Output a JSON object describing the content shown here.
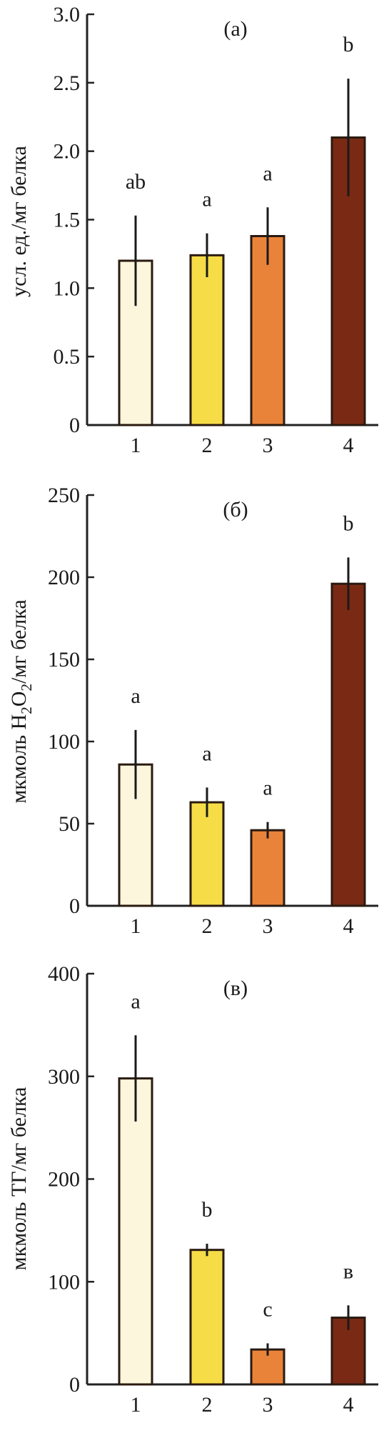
{
  "figure": {
    "colors": {
      "bar_1": "#fbf6dc",
      "bar_2": "#f6dd48",
      "bar_3": "#e9833a",
      "bar_4": "#7a2a14",
      "axis": "#222222"
    }
  },
  "chart_data": [
    {
      "type": "bar",
      "panel_label": "(а)",
      "ylabel": "усл. ед./мг белка",
      "ylim": [
        0,
        3.0
      ],
      "yticks": [
        0,
        0.5,
        1.0,
        1.5,
        2.0,
        2.5,
        3.0
      ],
      "ytick_labels": [
        "0",
        "0.5",
        "1.0",
        "1.5",
        "2.0",
        "2.5",
        "3.0"
      ],
      "categories": [
        "1",
        "2",
        "3",
        "4"
      ],
      "values": [
        1.2,
        1.24,
        1.38,
        2.1
      ],
      "errors": [
        0.33,
        0.16,
        0.21,
        0.43
      ],
      "significance": [
        "ab",
        "a",
        "a",
        "b"
      ]
    },
    {
      "type": "bar",
      "panel_label": "(б)",
      "ylabel": "мкмоль H2O2/мг белка",
      "ylabel_parts": {
        "pre": "мкмоль H",
        "sub1": "2",
        "mid": "O",
        "sub2": "2",
        "post": "/мг белка"
      },
      "ylim": [
        0,
        250
      ],
      "yticks": [
        0,
        50,
        100,
        150,
        200,
        250
      ],
      "ytick_labels": [
        "0",
        "50",
        "100",
        "150",
        "200",
        "250"
      ],
      "categories": [
        "1",
        "2",
        "3",
        "4"
      ],
      "values": [
        86,
        63,
        46,
        196
      ],
      "errors": [
        21,
        9,
        5,
        16
      ],
      "significance": [
        "a",
        "a",
        "a",
        "b"
      ]
    },
    {
      "type": "bar",
      "panel_label": "(в)",
      "ylabel": "мкмоль ТГ/мг белка",
      "ylim": [
        0,
        400
      ],
      "yticks": [
        0,
        100,
        200,
        300,
        400
      ],
      "ytick_labels": [
        "0",
        "100",
        "200",
        "300",
        "400"
      ],
      "categories": [
        "1",
        "2",
        "3",
        "4"
      ],
      "values": [
        298,
        131,
        34,
        65
      ],
      "errors": [
        42,
        6,
        6,
        12
      ],
      "significance": [
        "a",
        "b",
        "c",
        "в"
      ]
    }
  ]
}
